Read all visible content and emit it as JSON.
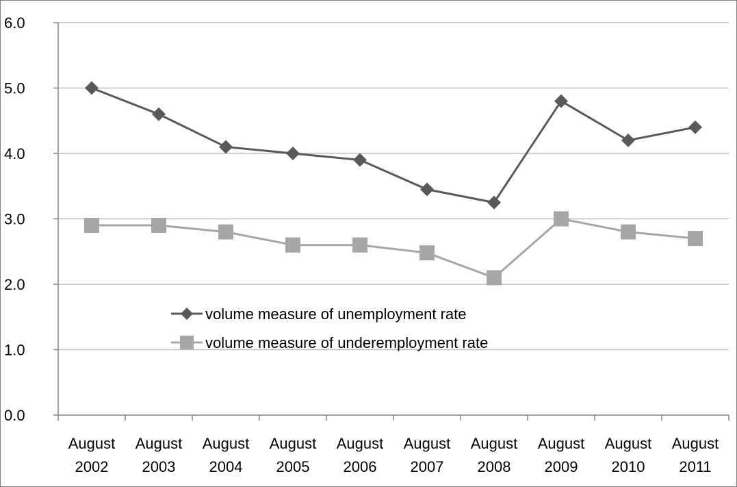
{
  "chart_data": {
    "type": "line",
    "categories": [
      [
        "August",
        "2002"
      ],
      [
        "August",
        "2003"
      ],
      [
        "August",
        "2004"
      ],
      [
        "August",
        "2005"
      ],
      [
        "August",
        "2006"
      ],
      [
        "August",
        "2007"
      ],
      [
        "August",
        "2008"
      ],
      [
        "August",
        "2009"
      ],
      [
        "August",
        "2010"
      ],
      [
        "August",
        "2011"
      ]
    ],
    "ylim": [
      0,
      6
    ],
    "yticks": [
      "0.0",
      "1.0",
      "2.0",
      "3.0",
      "4.0",
      "5.0",
      "6.0"
    ],
    "grid": "horizontal",
    "legend_position": "center",
    "series": [
      {
        "name": "volume measure of unemployment rate",
        "marker": "diamond",
        "color": "#595959",
        "values": [
          5.0,
          4.6,
          4.1,
          4.0,
          3.9,
          3.45,
          3.25,
          4.8,
          4.2,
          4.4
        ]
      },
      {
        "name": "volume measure of underemployment rate",
        "marker": "square",
        "color": "#a6a6a6",
        "values": [
          2.9,
          2.9,
          2.8,
          2.6,
          2.6,
          2.48,
          2.1,
          3.0,
          2.8,
          2.7
        ]
      }
    ]
  }
}
